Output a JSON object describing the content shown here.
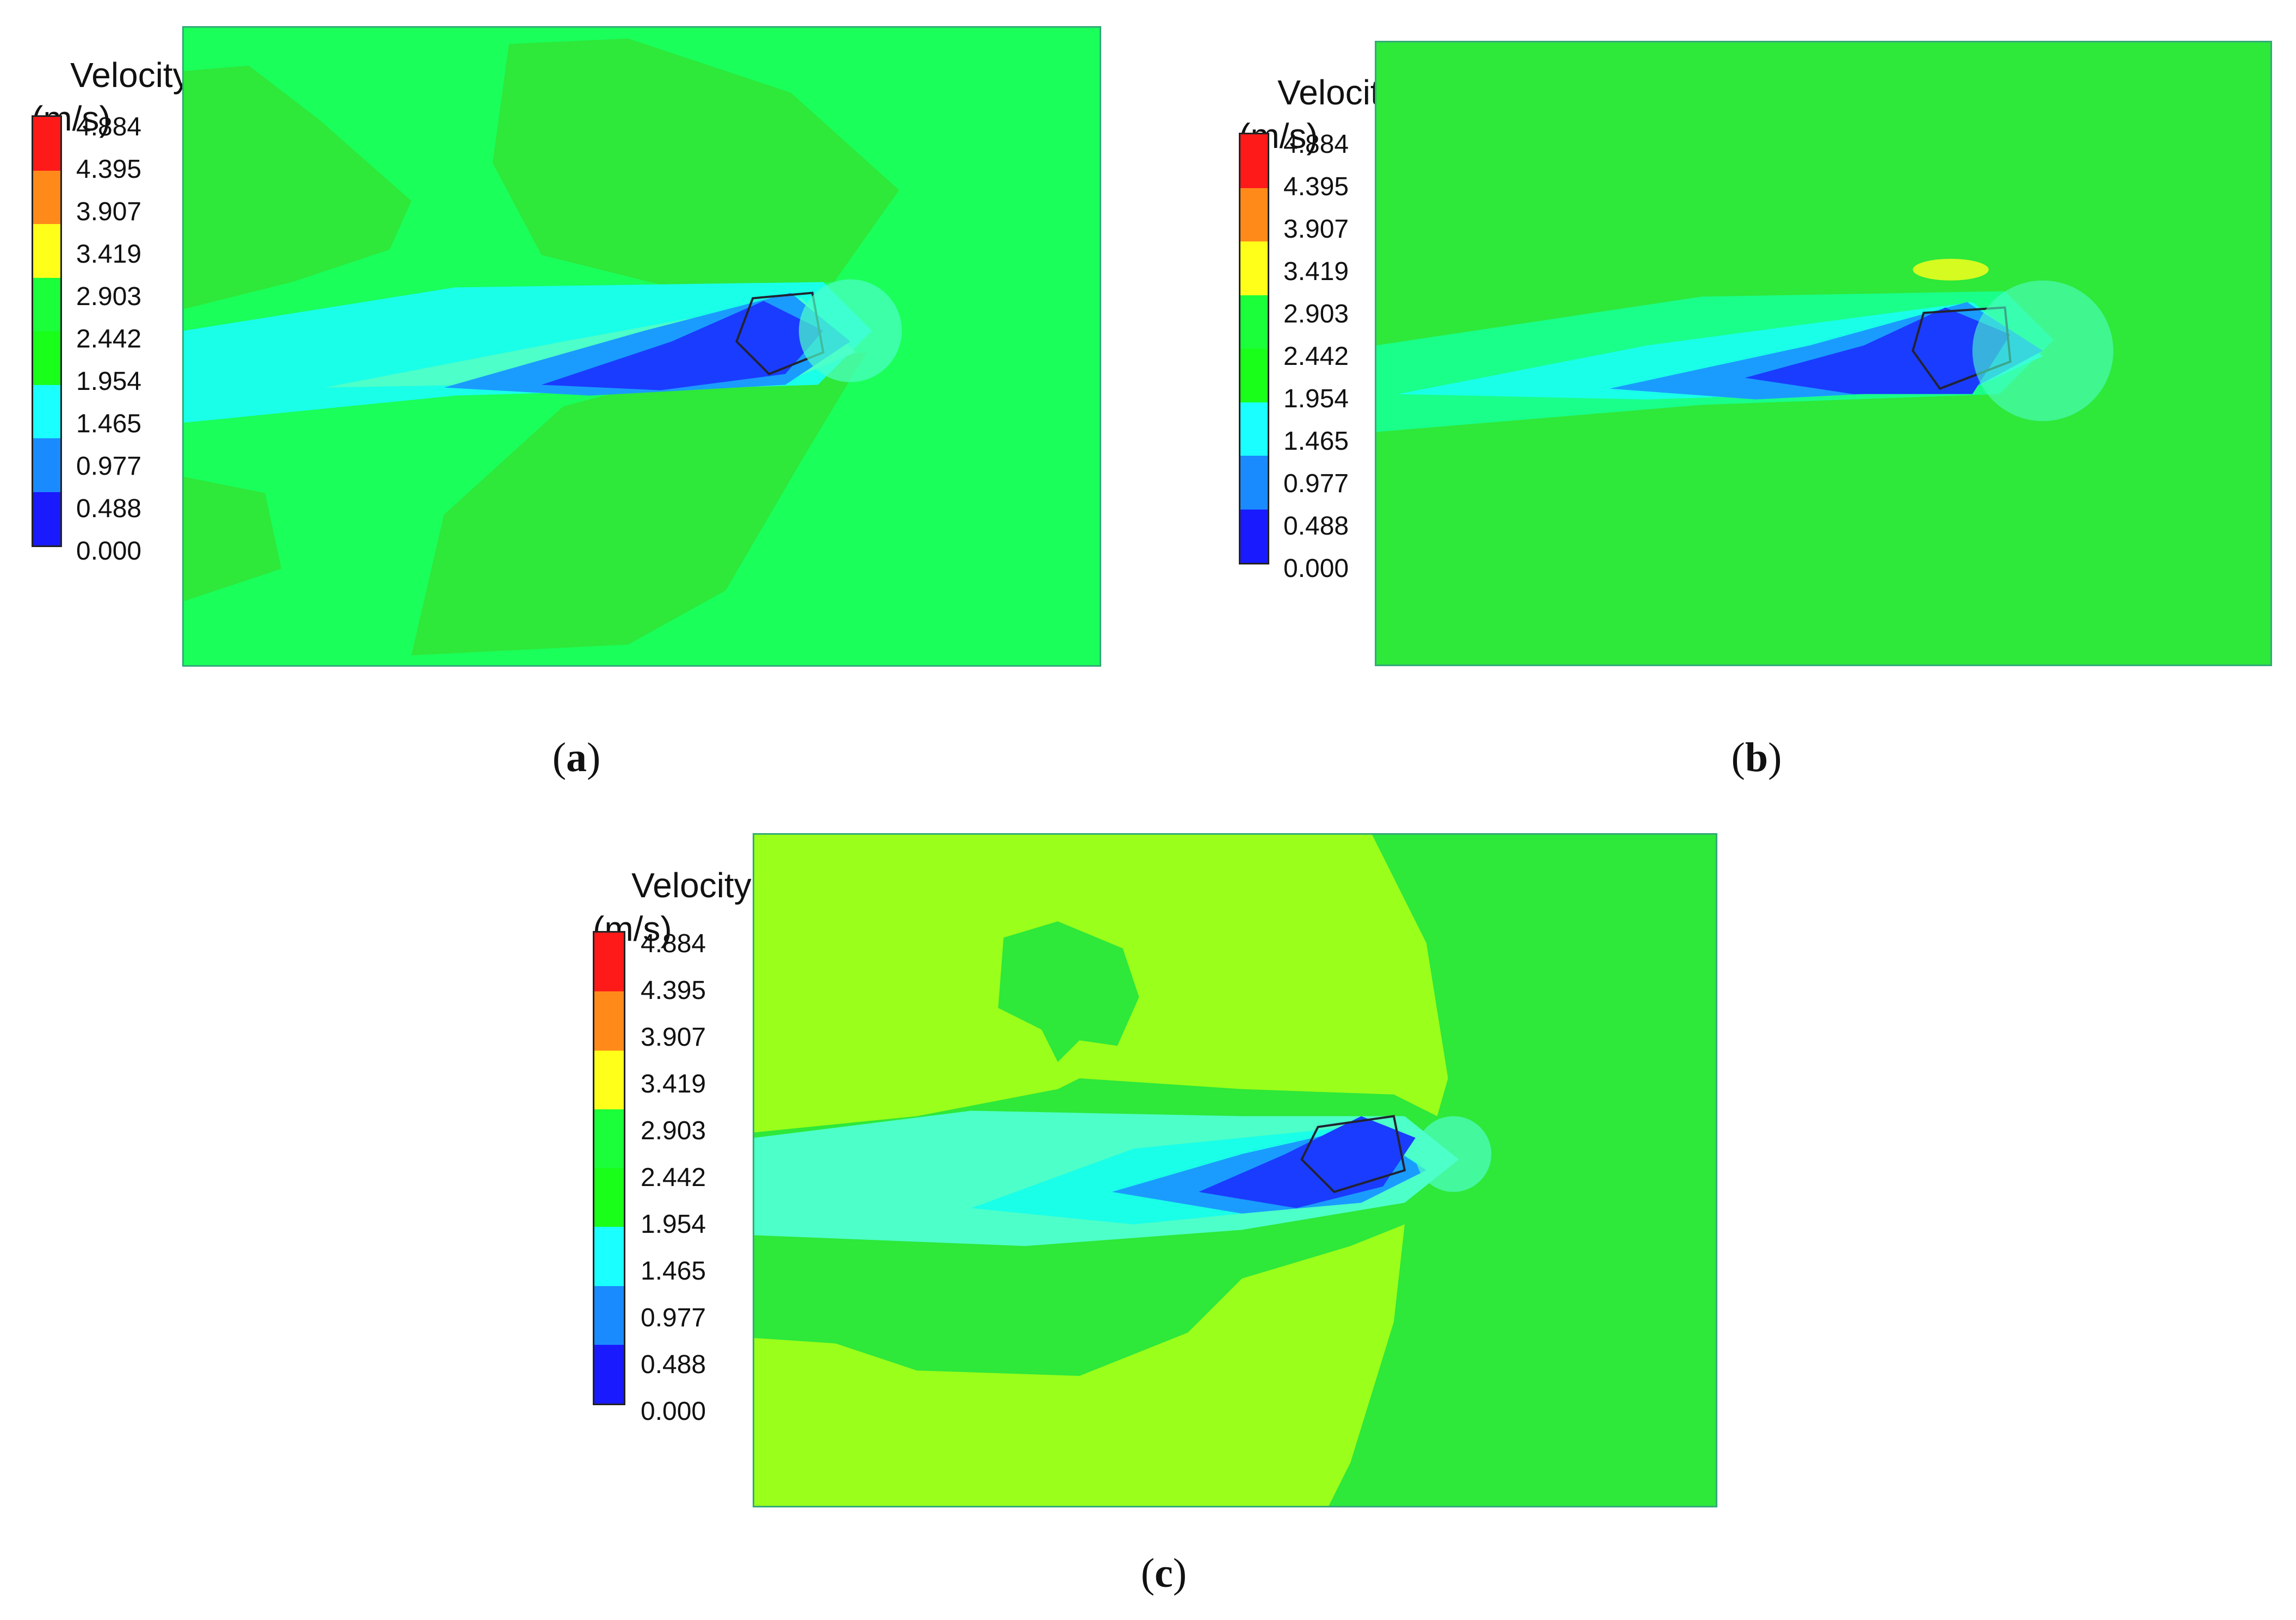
{
  "legend": {
    "title_line1": "Velocity",
    "title_line2": "(m/s)",
    "levels": [
      "4.884",
      "4.395",
      "3.907",
      "3.419",
      "2.903",
      "2.442",
      "1.954",
      "1.465",
      "0.977",
      "0.488",
      "0.000"
    ],
    "band_colors": [
      "#ff1a1a",
      "#ff8a1a",
      "#ffff1a",
      "#1aff3a",
      "#1aff1a",
      "#1affff",
      "#1a8aff",
      "#1a1aff"
    ]
  },
  "colors": {
    "green_base": "#1aff5a",
    "green_main": "#2ee83a",
    "yellow_green": "#9aff1a",
    "cyan": "#1affe8",
    "light_cyan": "#4dffc8",
    "light_blue": "#1a9cff",
    "blue": "#1a3cff"
  },
  "panels": [
    {
      "label_open": "(",
      "letter": "a",
      "label_close": ")"
    },
    {
      "label_open": "(",
      "letter": "b",
      "label_close": ")"
    },
    {
      "label_open": "(",
      "letter": "c",
      "label_close": ")"
    }
  ]
}
